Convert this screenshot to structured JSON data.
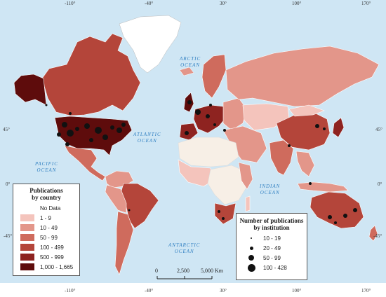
{
  "lon_ticks_top": [
    "-110°",
    "-40°",
    "30°",
    "100°",
    "170°"
  ],
  "lon_ticks_bottom": [
    "-110°",
    "-40°",
    "30°",
    "100°",
    "170°"
  ],
  "lat_ticks_left": [
    "45°",
    "0°",
    "-45°"
  ],
  "lat_ticks_right": [
    "45°",
    "0°",
    "-45°"
  ],
  "oceans": {
    "arctic": [
      "ARCTIC",
      "OCEAN"
    ],
    "atlantic": [
      "ATLANTIC",
      "OCEAN"
    ],
    "pacific": [
      "PACIFIC",
      "OCEAN"
    ],
    "indian": [
      "INDIAN",
      "OCEAN"
    ],
    "antarctic": [
      "ANTARCTIC",
      "OCEAN"
    ]
  },
  "country_legend": {
    "title_line1": "Publications",
    "title_line2": "by country",
    "classes": [
      {
        "label": "No Data",
        "color": "#ffffff"
      },
      {
        "label": "1 - 9",
        "color": "#f4c4bc"
      },
      {
        "label": "10 - 49",
        "color": "#e3968a"
      },
      {
        "label": "50 - 99",
        "color": "#cf6b5d"
      },
      {
        "label": "100 - 499",
        "color": "#b4453a"
      },
      {
        "label": "500 - 999",
        "color": "#8e2320"
      },
      {
        "label": "1,000 - 1,665",
        "color": "#5e0c0c"
      }
    ]
  },
  "institution_legend": {
    "title_line1": "Number of publications",
    "title_line2": "by institution",
    "classes": [
      {
        "label": "10 - 19",
        "size": 2
      },
      {
        "label": "20 - 49",
        "size": 5
      },
      {
        "label": "50 - 99",
        "size": 8
      },
      {
        "label": "100 - 428",
        "size": 11
      }
    ]
  },
  "scale_bar": {
    "labels": [
      "0",
      "2,500",
      "5,000 Km"
    ]
  },
  "colors": {
    "ocean": "#cfe6f4",
    "land_no_data": "#f7efe6",
    "greenland": "#ffffff",
    "border": "#ffffff",
    "dot": "#111111"
  }
}
